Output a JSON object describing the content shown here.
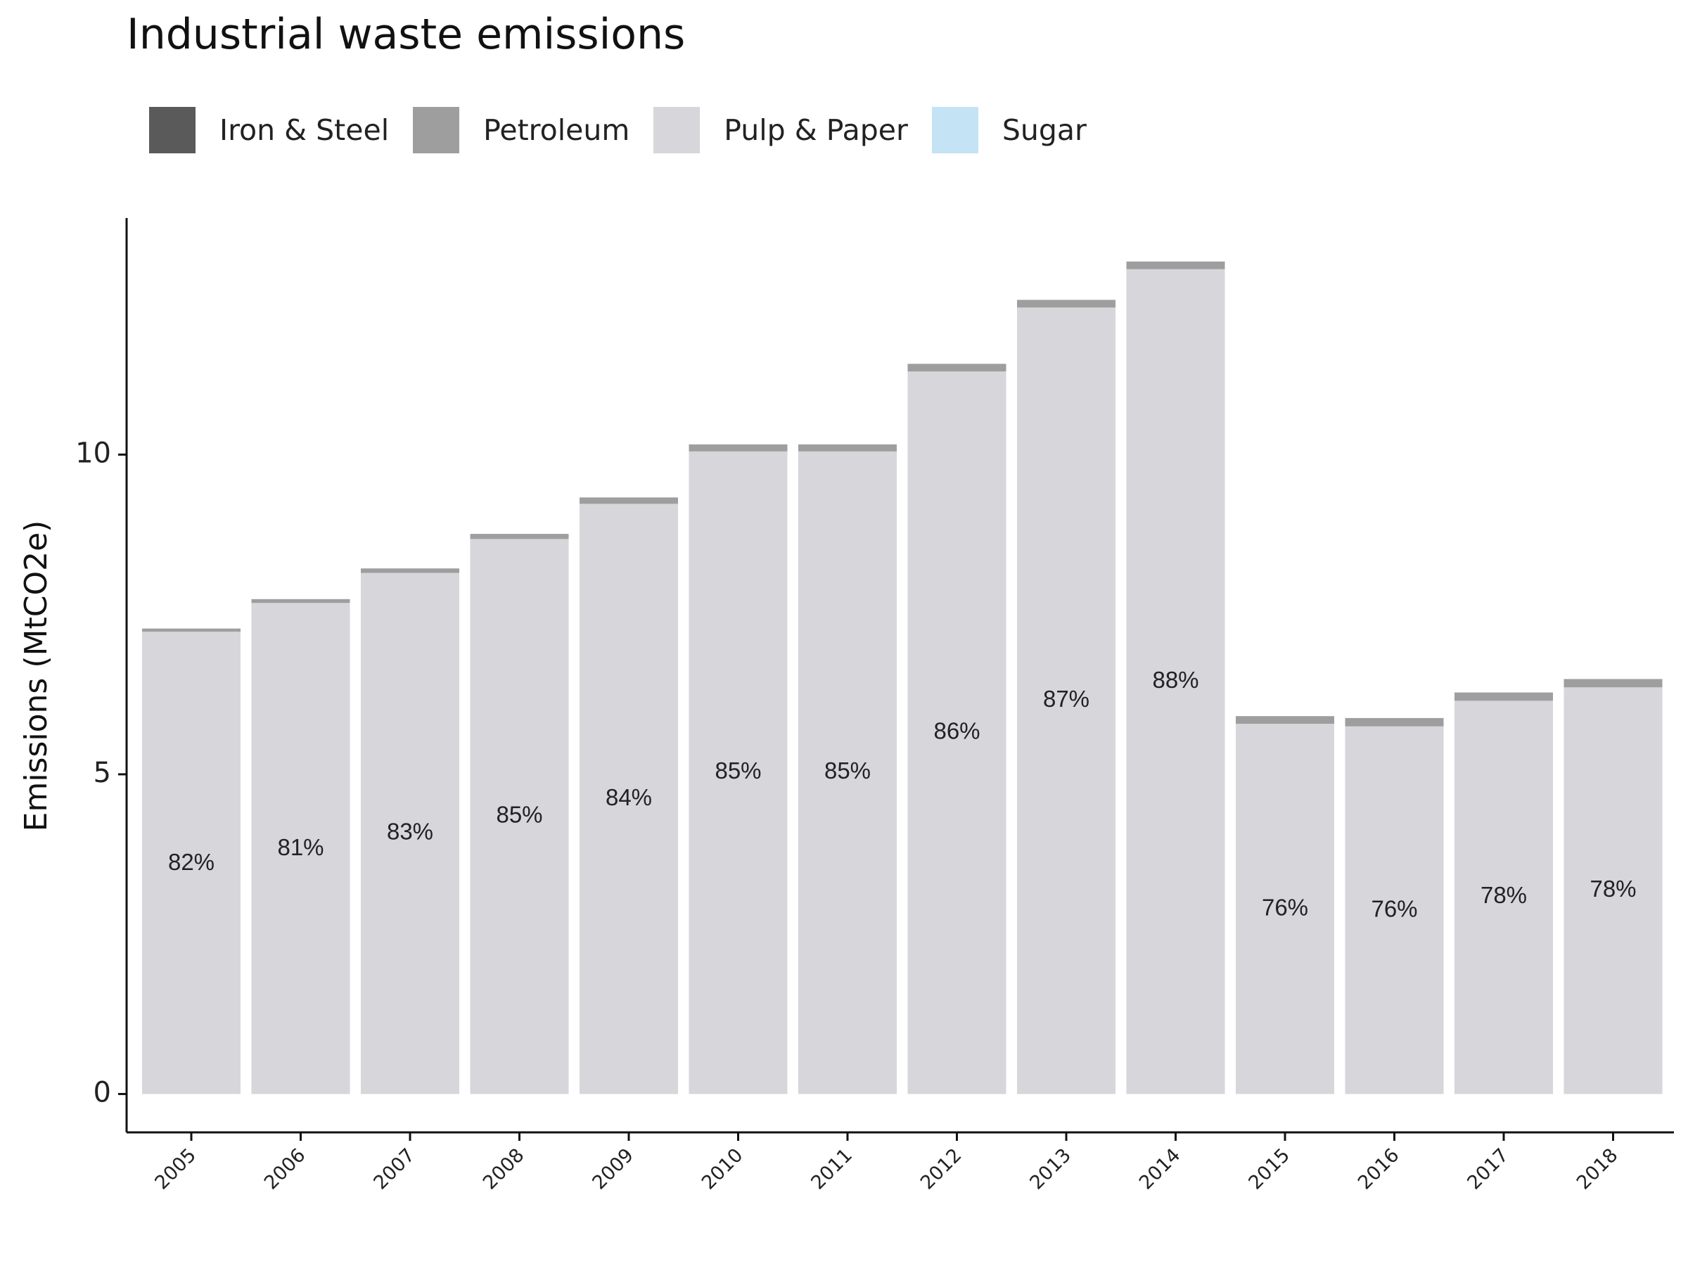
{
  "chart_data": {
    "type": "bar",
    "stacked": true,
    "title": "Industrial waste emissions",
    "ylabel": "Emissions (MtCO2e)",
    "xlabel": "",
    "ylim": [
      -0.6,
      13.7
    ],
    "yticks": [
      0,
      5,
      10
    ],
    "legend_position": "top",
    "grid": false,
    "categories": [
      "2005",
      "2006",
      "2007",
      "2008",
      "2009",
      "2010",
      "2011",
      "2012",
      "2013",
      "2014",
      "2015",
      "2016",
      "2017",
      "2018"
    ],
    "series": [
      {
        "name": "Iron & Steel",
        "color": "#5a5a5a",
        "values": [
          0,
          0,
          0,
          0,
          0,
          0,
          0,
          0,
          0,
          0,
          0,
          0,
          0,
          0
        ]
      },
      {
        "name": "Pulp & Paper",
        "color": "#d6d6db",
        "values": [
          7.23,
          7.68,
          8.15,
          8.68,
          9.23,
          10.05,
          10.05,
          11.3,
          12.3,
          12.9,
          5.79,
          5.75,
          6.15,
          6.36
        ]
      },
      {
        "name": "Petroleum",
        "color": "#9e9e9e",
        "values": [
          0.05,
          0.06,
          0.07,
          0.08,
          0.1,
          0.11,
          0.11,
          0.12,
          0.12,
          0.12,
          0.12,
          0.13,
          0.13,
          0.13
        ]
      },
      {
        "name": "Sugar",
        "color": "#c4e3f5",
        "values": [
          0,
          0,
          0,
          0,
          0,
          0,
          0,
          0,
          0,
          0,
          0,
          0,
          0,
          0
        ]
      }
    ],
    "legend_order": [
      "Iron & Steel",
      "Petroleum",
      "Pulp & Paper",
      "Sugar"
    ],
    "annotations": [
      "82%",
      "81%",
      "83%",
      "85%",
      "84%",
      "85%",
      "85%",
      "86%",
      "87%",
      "88%",
      "76%",
      "76%",
      "78%",
      "78%"
    ],
    "annotation_y": [
      3.6,
      3.83,
      4.08,
      4.34,
      4.61,
      5.03,
      5.03,
      5.65,
      6.15,
      6.45,
      2.89,
      2.87,
      3.08,
      3.18
    ]
  }
}
